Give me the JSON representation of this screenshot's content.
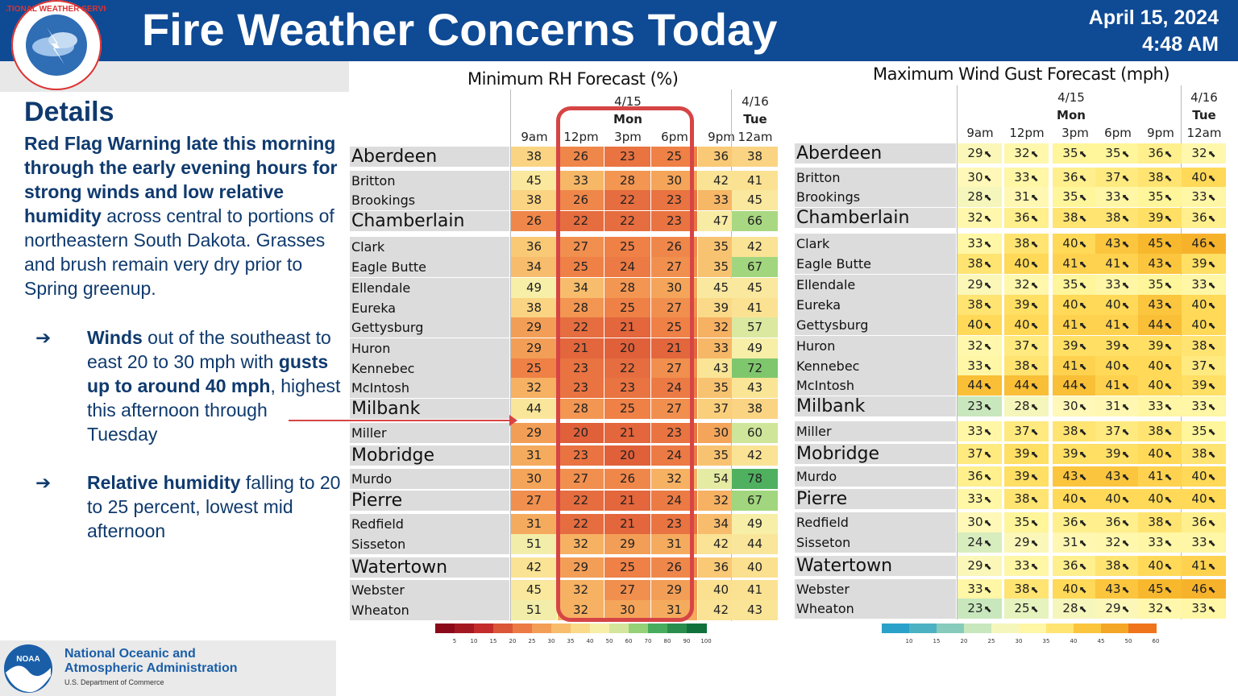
{
  "header": {
    "title": "Fire Weather Concerns Today",
    "date": "April 15, 2024",
    "time": "4:48 AM",
    "logo_text": "NATIONAL WEATHER SERVICE"
  },
  "details": {
    "heading": "Details",
    "intro_bold": "Red Flag Warning late this morning through the early evening hours for strong winds and low relative humidity",
    "intro_rest": " across central to portions of northeastern South Dakota. Grasses and brush remain very dry prior to Spring greenup.",
    "bullets": [
      {
        "b1": "Winds",
        "t1": " out of the southeast to east 20 to 30 mph with ",
        "b2": "gusts up to around 40 mph",
        "t2": ", highest this afternoon through Tuesday"
      },
      {
        "b1": "Relative humidity",
        "t1": " falling to 20 to 25 percent, lowest mid afternoon",
        "b2": "",
        "t2": ""
      }
    ]
  },
  "footer": {
    "line1": "National Oceanic and",
    "line2": "Atmospheric Administration",
    "sub": "U.S. Department of Commerce",
    "logo": "NOAA"
  },
  "chart_data": [
    {
      "type": "table",
      "title": "Minimum RH Forecast (%)",
      "date_groups": [
        {
          "date": "4/15",
          "day": "Mon"
        },
        {
          "date": "4/16",
          "day": "Tue"
        }
      ],
      "columns": [
        "9am",
        "12pm",
        "3pm",
        "6pm",
        "9pm",
        "12am"
      ],
      "locations": [
        "Aberdeen",
        "Britton",
        "Brookings",
        "Chamberlain",
        "Clark",
        "Eagle Butte",
        "Ellendale",
        "Eureka",
        "Gettysburg",
        "Huron",
        "Kennebec",
        "McIntosh",
        "Milbank",
        "Miller",
        "Mobridge",
        "Murdo",
        "Pierre",
        "Redfield",
        "Sisseton",
        "Watertown",
        "Webster",
        "Wheaton"
      ],
      "values": [
        [
          38,
          26,
          23,
          25,
          36,
          38
        ],
        [
          45,
          33,
          28,
          30,
          42,
          41
        ],
        [
          38,
          26,
          22,
          23,
          33,
          45
        ],
        [
          26,
          22,
          22,
          23,
          47,
          66
        ],
        [
          36,
          27,
          25,
          26,
          35,
          42
        ],
        [
          34,
          25,
          24,
          27,
          35,
          67
        ],
        [
          49,
          34,
          28,
          30,
          45,
          45
        ],
        [
          38,
          28,
          25,
          27,
          39,
          41
        ],
        [
          29,
          22,
          21,
          25,
          32,
          57
        ],
        [
          29,
          21,
          20,
          21,
          33,
          49
        ],
        [
          25,
          23,
          22,
          27,
          43,
          72
        ],
        [
          32,
          23,
          23,
          24,
          35,
          43
        ],
        [
          44,
          28,
          25,
          27,
          37,
          38
        ],
        [
          29,
          20,
          21,
          23,
          30,
          60
        ],
        [
          31,
          23,
          20,
          24,
          35,
          42
        ],
        [
          30,
          27,
          26,
          32,
          54,
          78
        ],
        [
          27,
          22,
          21,
          24,
          32,
          67
        ],
        [
          31,
          22,
          21,
          23,
          34,
          49
        ],
        [
          51,
          32,
          29,
          31,
          42,
          44
        ],
        [
          42,
          29,
          25,
          26,
          36,
          40
        ],
        [
          45,
          32,
          27,
          29,
          40,
          41
        ],
        [
          51,
          32,
          30,
          31,
          42,
          43
        ]
      ],
      "colorbar_ticks": [
        "5",
        "10",
        "15",
        "20",
        "25",
        "30",
        "35",
        "40",
        "50",
        "60",
        "70",
        "80",
        "90",
        "100"
      ]
    },
    {
      "type": "table",
      "title": "Maximum Wind Gust Forecast (mph)",
      "date_groups": [
        {
          "date": "4/15",
          "day": "Mon"
        },
        {
          "date": "4/16",
          "day": "Tue"
        }
      ],
      "columns": [
        "9am",
        "12pm",
        "3pm",
        "6pm",
        "9pm",
        "12am"
      ],
      "locations": [
        "Aberdeen",
        "Britton",
        "Brookings",
        "Chamberlain",
        "Clark",
        "Eagle Butte",
        "Ellendale",
        "Eureka",
        "Gettysburg",
        "Huron",
        "Kennebec",
        "McIntosh",
        "Milbank",
        "Miller",
        "Mobridge",
        "Murdo",
        "Pierre",
        "Redfield",
        "Sisseton",
        "Watertown",
        "Webster",
        "Wheaton"
      ],
      "values": [
        [
          29,
          32,
          35,
          35,
          36,
          32
        ],
        [
          30,
          33,
          36,
          37,
          38,
          40
        ],
        [
          28,
          31,
          35,
          33,
          35,
          33
        ],
        [
          32,
          36,
          38,
          38,
          39,
          36
        ],
        [
          33,
          38,
          40,
          43,
          45,
          46
        ],
        [
          38,
          40,
          41,
          41,
          43,
          39
        ],
        [
          29,
          32,
          35,
          33,
          35,
          33
        ],
        [
          38,
          39,
          40,
          40,
          43,
          40
        ],
        [
          40,
          40,
          41,
          41,
          44,
          40
        ],
        [
          32,
          37,
          39,
          39,
          39,
          38
        ],
        [
          33,
          38,
          41,
          40,
          40,
          37
        ],
        [
          44,
          44,
          44,
          41,
          40,
          39
        ],
        [
          23,
          28,
          30,
          31,
          33,
          33
        ],
        [
          33,
          37,
          38,
          37,
          38,
          35
        ],
        [
          37,
          39,
          39,
          39,
          40,
          38
        ],
        [
          36,
          39,
          43,
          43,
          41,
          40
        ],
        [
          33,
          38,
          40,
          40,
          40,
          40
        ],
        [
          30,
          35,
          36,
          36,
          38,
          36
        ],
        [
          24,
          29,
          31,
          32,
          33,
          33
        ],
        [
          29,
          33,
          36,
          38,
          40,
          41
        ],
        [
          33,
          38,
          40,
          43,
          45,
          46
        ],
        [
          23,
          25,
          28,
          29,
          32,
          33
        ]
      ],
      "colorbar_ticks": [
        "10",
        "15",
        "20",
        "25",
        "30",
        "35",
        "40",
        "45",
        "50",
        "60"
      ]
    }
  ]
}
